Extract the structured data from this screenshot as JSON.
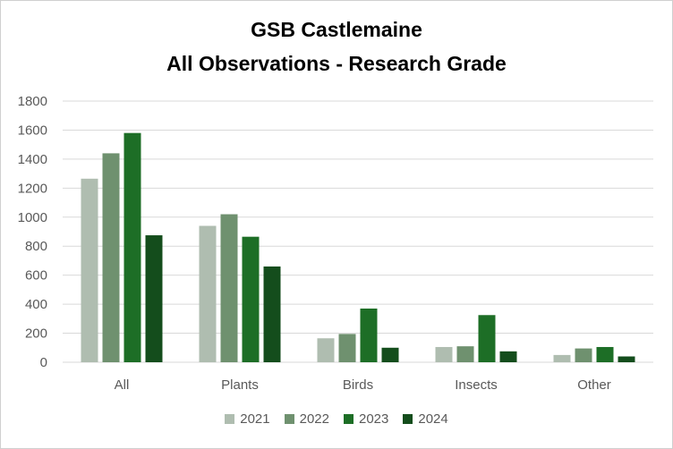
{
  "chart_data": {
    "type": "bar",
    "title_line1": "GSB Castlemaine",
    "title_line2": "All Observations - Research Grade",
    "categories": [
      "All",
      "Plants",
      "Birds",
      "Insects",
      "Other"
    ],
    "series": [
      {
        "name": "2021",
        "color": "#afbdb0",
        "values": [
          1265,
          940,
          165,
          105,
          50
        ]
      },
      {
        "name": "2022",
        "color": "#6f916f",
        "values": [
          1440,
          1020,
          195,
          110,
          95
        ]
      },
      {
        "name": "2023",
        "color": "#1d6e26",
        "values": [
          1580,
          865,
          370,
          325,
          105
        ]
      },
      {
        "name": "2024",
        "color": "#144d1c",
        "values": [
          875,
          660,
          100,
          75,
          40
        ]
      }
    ],
    "ylim": [
      0,
      1800
    ],
    "yticks": [
      "0",
      "200",
      "400",
      "600",
      "800",
      "1000",
      "1200",
      "1400",
      "1600",
      "1800"
    ],
    "grid": true,
    "legend_position": "bottom"
  }
}
